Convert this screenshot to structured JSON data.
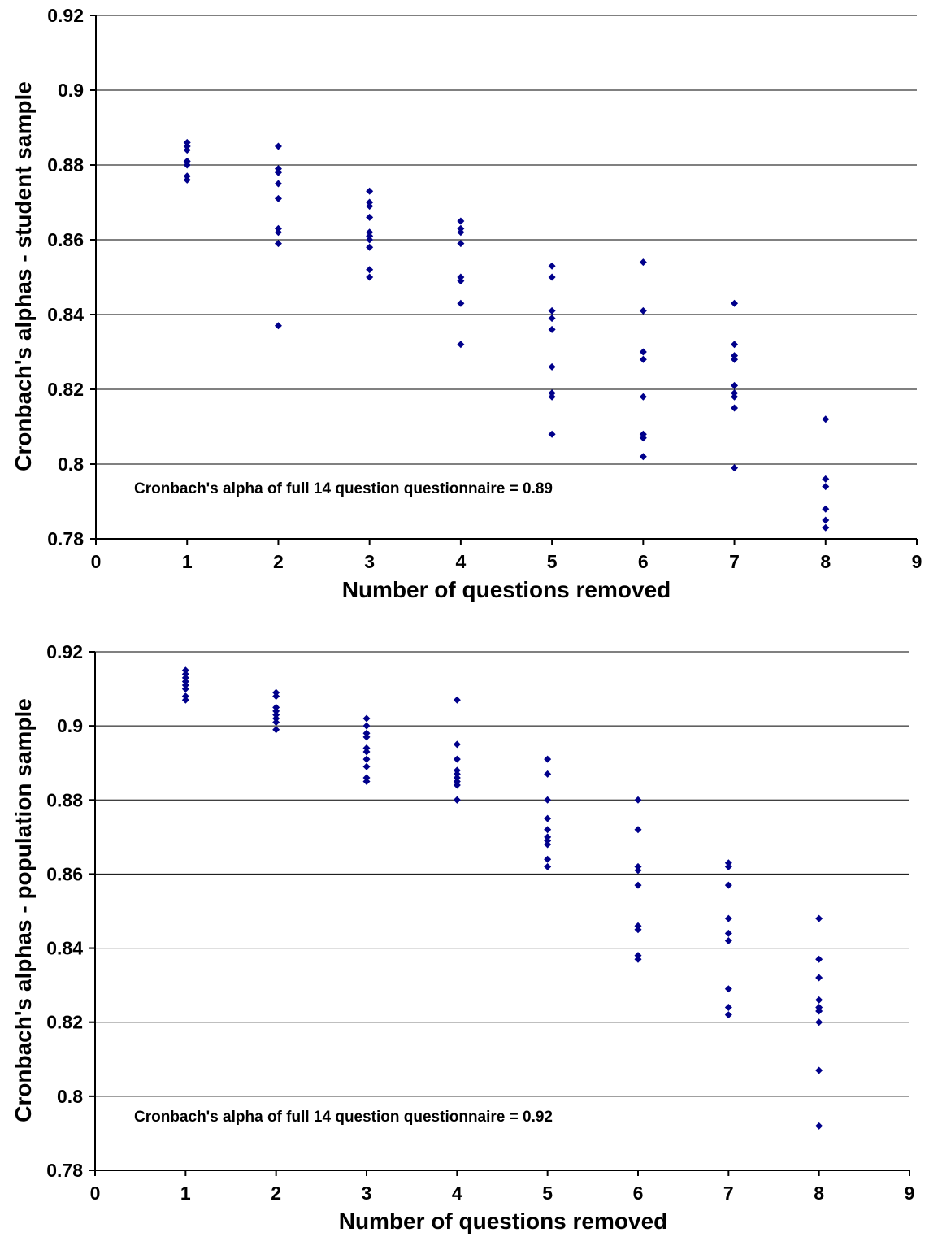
{
  "chart_data": [
    {
      "type": "scatter",
      "xlabel": "Number of questions removed",
      "ylabel": "Cronbach's alphas - student sample",
      "xlim": [
        0,
        9
      ],
      "ylim": [
        0.78,
        0.92
      ],
      "x_ticks": [
        "0",
        "1",
        "2",
        "3",
        "4",
        "5",
        "6",
        "7",
        "8",
        "9"
      ],
      "y_ticks": [
        "0.78",
        "0.8",
        "0.82",
        "0.84",
        "0.86",
        "0.88",
        "0.9",
        "0.92"
      ],
      "grid": "horizontal",
      "marker_color": "#00008b",
      "annotation": "Cronbach's alpha of full 14 question questionnaire = 0.89",
      "points": [
        {
          "x": 1,
          "y": 0.886
        },
        {
          "x": 1,
          "y": 0.885
        },
        {
          "x": 1,
          "y": 0.884
        },
        {
          "x": 1,
          "y": 0.881
        },
        {
          "x": 1,
          "y": 0.88
        },
        {
          "x": 1,
          "y": 0.877
        },
        {
          "x": 1,
          "y": 0.876
        },
        {
          "x": 2,
          "y": 0.885
        },
        {
          "x": 2,
          "y": 0.879
        },
        {
          "x": 2,
          "y": 0.878
        },
        {
          "x": 2,
          "y": 0.875
        },
        {
          "x": 2,
          "y": 0.871
        },
        {
          "x": 2,
          "y": 0.863
        },
        {
          "x": 2,
          "y": 0.862
        },
        {
          "x": 2,
          "y": 0.859
        },
        {
          "x": 2,
          "y": 0.837
        },
        {
          "x": 3,
          "y": 0.873
        },
        {
          "x": 3,
          "y": 0.87
        },
        {
          "x": 3,
          "y": 0.869
        },
        {
          "x": 3,
          "y": 0.866
        },
        {
          "x": 3,
          "y": 0.862
        },
        {
          "x": 3,
          "y": 0.861
        },
        {
          "x": 3,
          "y": 0.86
        },
        {
          "x": 3,
          "y": 0.858
        },
        {
          "x": 3,
          "y": 0.852
        },
        {
          "x": 3,
          "y": 0.85
        },
        {
          "x": 4,
          "y": 0.865
        },
        {
          "x": 4,
          "y": 0.863
        },
        {
          "x": 4,
          "y": 0.862
        },
        {
          "x": 4,
          "y": 0.859
        },
        {
          "x": 4,
          "y": 0.85
        },
        {
          "x": 4,
          "y": 0.849
        },
        {
          "x": 4,
          "y": 0.843
        },
        {
          "x": 4,
          "y": 0.832
        },
        {
          "x": 5,
          "y": 0.853
        },
        {
          "x": 5,
          "y": 0.85
        },
        {
          "x": 5,
          "y": 0.841
        },
        {
          "x": 5,
          "y": 0.839
        },
        {
          "x": 5,
          "y": 0.836
        },
        {
          "x": 5,
          "y": 0.826
        },
        {
          "x": 5,
          "y": 0.819
        },
        {
          "x": 5,
          "y": 0.818
        },
        {
          "x": 5,
          "y": 0.808
        },
        {
          "x": 6,
          "y": 0.854
        },
        {
          "x": 6,
          "y": 0.841
        },
        {
          "x": 6,
          "y": 0.83
        },
        {
          "x": 6,
          "y": 0.828
        },
        {
          "x": 6,
          "y": 0.818
        },
        {
          "x": 6,
          "y": 0.808
        },
        {
          "x": 6,
          "y": 0.807
        },
        {
          "x": 6,
          "y": 0.802
        },
        {
          "x": 7,
          "y": 0.843
        },
        {
          "x": 7,
          "y": 0.832
        },
        {
          "x": 7,
          "y": 0.829
        },
        {
          "x": 7,
          "y": 0.828
        },
        {
          "x": 7,
          "y": 0.821
        },
        {
          "x": 7,
          "y": 0.819
        },
        {
          "x": 7,
          "y": 0.818
        },
        {
          "x": 7,
          "y": 0.815
        },
        {
          "x": 7,
          "y": 0.799
        },
        {
          "x": 8,
          "y": 0.812
        },
        {
          "x": 8,
          "y": 0.796
        },
        {
          "x": 8,
          "y": 0.794
        },
        {
          "x": 8,
          "y": 0.788
        },
        {
          "x": 8,
          "y": 0.785
        },
        {
          "x": 8,
          "y": 0.783
        }
      ]
    },
    {
      "type": "scatter",
      "xlabel": "Number of questions removed",
      "ylabel": "Cronbach's alphas - population sample",
      "xlim": [
        0,
        9
      ],
      "ylim": [
        0.78,
        0.92
      ],
      "x_ticks": [
        "0",
        "1",
        "2",
        "3",
        "4",
        "5",
        "6",
        "7",
        "8",
        "9"
      ],
      "y_ticks": [
        "0.78",
        "0.8",
        "0.82",
        "0.84",
        "0.86",
        "0.88",
        "0.9",
        "0.92"
      ],
      "grid": "horizontal",
      "marker_color": "#00008b",
      "annotation": "Cronbach's alpha of full 14 question questionnaire = 0.92",
      "points": [
        {
          "x": 1,
          "y": 0.915
        },
        {
          "x": 1,
          "y": 0.914
        },
        {
          "x": 1,
          "y": 0.913
        },
        {
          "x": 1,
          "y": 0.912
        },
        {
          "x": 1,
          "y": 0.911
        },
        {
          "x": 1,
          "y": 0.91
        },
        {
          "x": 1,
          "y": 0.908
        },
        {
          "x": 1,
          "y": 0.907
        },
        {
          "x": 2,
          "y": 0.909
        },
        {
          "x": 2,
          "y": 0.908
        },
        {
          "x": 2,
          "y": 0.905
        },
        {
          "x": 2,
          "y": 0.904
        },
        {
          "x": 2,
          "y": 0.903
        },
        {
          "x": 2,
          "y": 0.902
        },
        {
          "x": 2,
          "y": 0.901
        },
        {
          "x": 2,
          "y": 0.899
        },
        {
          "x": 3,
          "y": 0.902
        },
        {
          "x": 3,
          "y": 0.9
        },
        {
          "x": 3,
          "y": 0.898
        },
        {
          "x": 3,
          "y": 0.897
        },
        {
          "x": 3,
          "y": 0.894
        },
        {
          "x": 3,
          "y": 0.893
        },
        {
          "x": 3,
          "y": 0.891
        },
        {
          "x": 3,
          "y": 0.889
        },
        {
          "x": 3,
          "y": 0.886
        },
        {
          "x": 3,
          "y": 0.885
        },
        {
          "x": 4,
          "y": 0.907
        },
        {
          "x": 4,
          "y": 0.895
        },
        {
          "x": 4,
          "y": 0.891
        },
        {
          "x": 4,
          "y": 0.888
        },
        {
          "x": 4,
          "y": 0.887
        },
        {
          "x": 4,
          "y": 0.886
        },
        {
          "x": 4,
          "y": 0.885
        },
        {
          "x": 4,
          "y": 0.884
        },
        {
          "x": 4,
          "y": 0.88
        },
        {
          "x": 4,
          "y": 0.88
        },
        {
          "x": 5,
          "y": 0.891
        },
        {
          "x": 5,
          "y": 0.887
        },
        {
          "x": 5,
          "y": 0.88
        },
        {
          "x": 5,
          "y": 0.875
        },
        {
          "x": 5,
          "y": 0.872
        },
        {
          "x": 5,
          "y": 0.87
        },
        {
          "x": 5,
          "y": 0.869
        },
        {
          "x": 5,
          "y": 0.868
        },
        {
          "x": 5,
          "y": 0.864
        },
        {
          "x": 5,
          "y": 0.862
        },
        {
          "x": 6,
          "y": 0.88
        },
        {
          "x": 6,
          "y": 0.872
        },
        {
          "x": 6,
          "y": 0.862
        },
        {
          "x": 6,
          "y": 0.861
        },
        {
          "x": 6,
          "y": 0.857
        },
        {
          "x": 6,
          "y": 0.846
        },
        {
          "x": 6,
          "y": 0.845
        },
        {
          "x": 6,
          "y": 0.838
        },
        {
          "x": 6,
          "y": 0.837
        },
        {
          "x": 7,
          "y": 0.863
        },
        {
          "x": 7,
          "y": 0.862
        },
        {
          "x": 7,
          "y": 0.857
        },
        {
          "x": 7,
          "y": 0.848
        },
        {
          "x": 7,
          "y": 0.844
        },
        {
          "x": 7,
          "y": 0.842
        },
        {
          "x": 7,
          "y": 0.829
        },
        {
          "x": 7,
          "y": 0.824
        },
        {
          "x": 7,
          "y": 0.822
        },
        {
          "x": 8,
          "y": 0.848
        },
        {
          "x": 8,
          "y": 0.837
        },
        {
          "x": 8,
          "y": 0.832
        },
        {
          "x": 8,
          "y": 0.826
        },
        {
          "x": 8,
          "y": 0.824
        },
        {
          "x": 8,
          "y": 0.823
        },
        {
          "x": 8,
          "y": 0.82
        },
        {
          "x": 8,
          "y": 0.807
        },
        {
          "x": 8,
          "y": 0.792
        }
      ]
    }
  ]
}
